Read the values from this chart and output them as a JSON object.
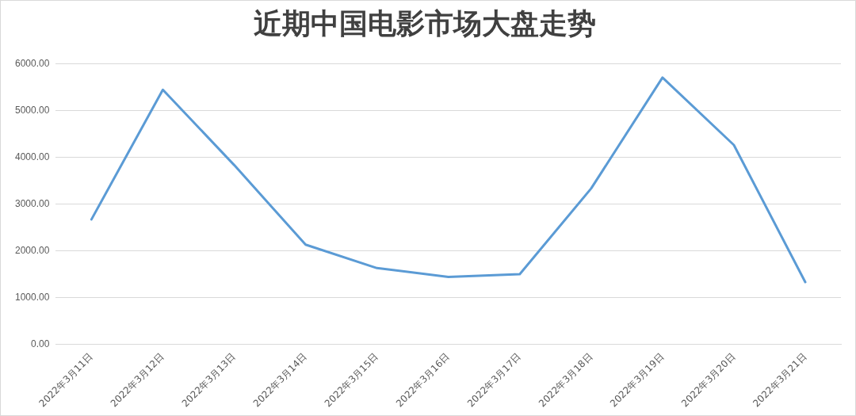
{
  "chart_data": {
    "type": "line",
    "title": "近期中国电影市场大盘走势",
    "categories": [
      "2022年3月11日",
      "2022年3月12日",
      "2022年3月13日",
      "2022年3月14日",
      "2022年3月15日",
      "2022年3月16日",
      "2022年3月17日",
      "2022年3月18日",
      "2022年3月19日",
      "2022年3月20日",
      "2022年3月21日"
    ],
    "series": [
      {
        "color": "#5b9bd5",
        "values": [
          2670,
          5440,
          3830,
          2130,
          1630,
          1440,
          1500,
          3330,
          5700,
          4260,
          1330
        ]
      }
    ],
    "ylim": [
      0,
      6000
    ],
    "yticks": [
      {
        "value": 0,
        "label": "0.00"
      },
      {
        "value": 1000,
        "label": "1000.00"
      },
      {
        "value": 2000,
        "label": "2000.00"
      },
      {
        "value": 3000,
        "label": "3000.00"
      },
      {
        "value": 4000,
        "label": "4000.00"
      },
      {
        "value": 5000,
        "label": "5000.00"
      },
      {
        "value": 6000,
        "label": "6000.00"
      }
    ],
    "grid": "y",
    "legend": false,
    "marker": "none",
    "line_style": "solid"
  }
}
